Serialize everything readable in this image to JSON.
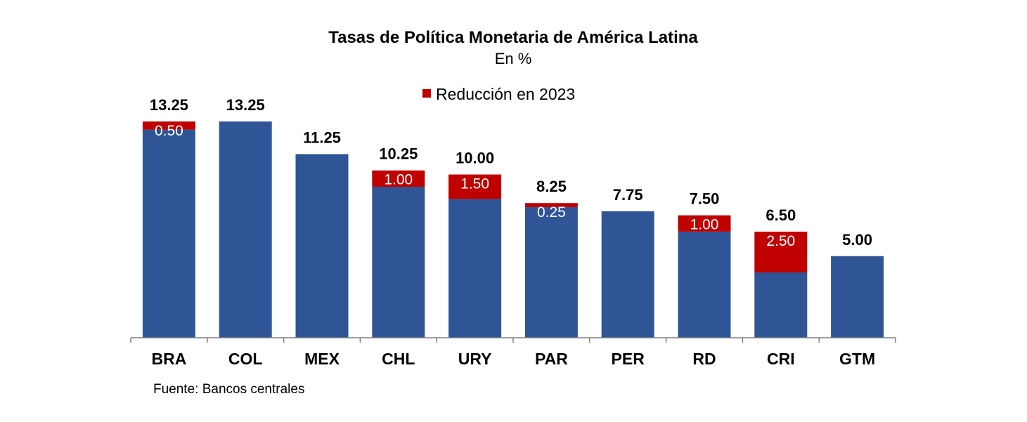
{
  "colors": {
    "base": "#2f5597",
    "reduction": "#c00000",
    "axis": "#7f7f7f"
  },
  "chart_data": {
    "type": "bar",
    "stacked": true,
    "title": "Tasas de Política Monetaria de América Latina",
    "subtitle": "En %",
    "legend": {
      "entries": [
        "Reducción en 2023"
      ],
      "placement": "top"
    },
    "categories": [
      "BRA",
      "COL",
      "MEX",
      "CHL",
      "URY",
      "PAR",
      "PER",
      "RD",
      "CRI",
      "GTM"
    ],
    "totals": [
      13.25,
      13.25,
      11.25,
      10.25,
      10.0,
      8.25,
      7.75,
      7.5,
      6.5,
      5.0
    ],
    "total_labels": [
      "13.25",
      "13.25",
      "11.25",
      "10.25",
      "10.00",
      "8.25",
      "7.75",
      "7.50",
      "6.50",
      "5.00"
    ],
    "series": [
      {
        "values": [
          12.75,
          13.25,
          11.25,
          9.25,
          8.5,
          8.0,
          7.75,
          6.5,
          4.0,
          5.0
        ]
      },
      {
        "name": "Reducción en 2023",
        "values": [
          0.5,
          0,
          0,
          1.0,
          1.5,
          0.25,
          0,
          1.0,
          2.5,
          0
        ],
        "labels": [
          "0.50",
          "",
          "",
          "1.00",
          "1.50",
          "0.25",
          "",
          "1.00",
          "2.50",
          ""
        ]
      }
    ],
    "ylim": [
      0,
      13.25
    ],
    "grid": false,
    "source": "Fuente: Bancos centrales"
  }
}
